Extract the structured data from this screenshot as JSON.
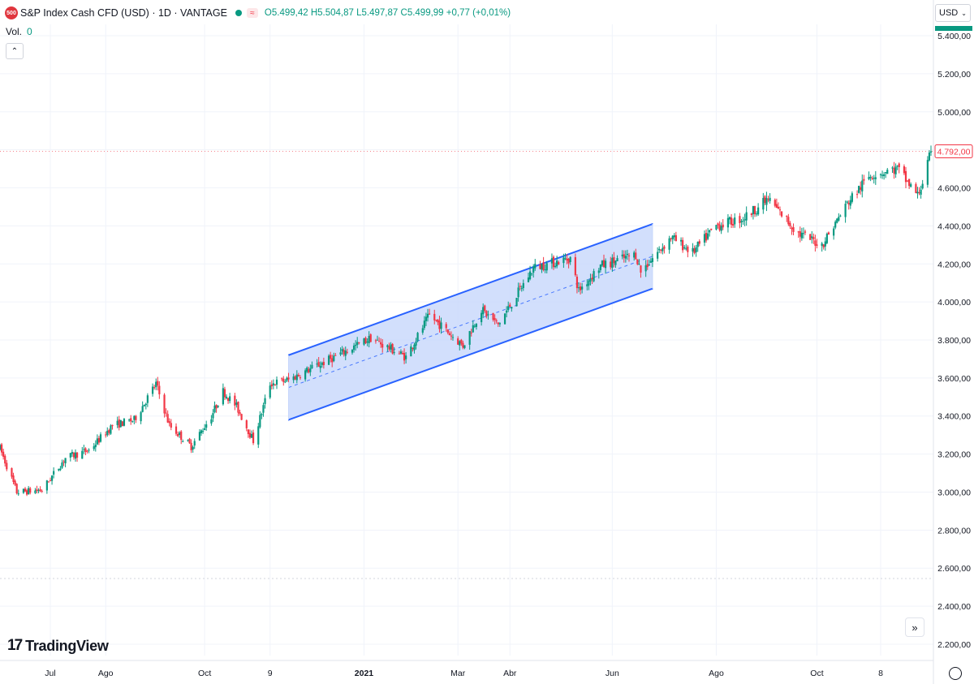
{
  "header": {
    "symbol_badge": "500",
    "symbol_title": "S&P Index Cash CFD (USD) · 1D · VANTAGE",
    "wave_icon": "≈",
    "ohlc": {
      "open_label": "O",
      "open": "5.499,42",
      "high_label": "H",
      "high": "5.504,87",
      "low_label": "L",
      "low": "5.497,87",
      "close_label": "C",
      "close": "5.499,99",
      "change": "+0,77 (+0,01%)"
    }
  },
  "volume": {
    "label": "Vol.",
    "value": "0"
  },
  "currency_selector": "USD",
  "branding": {
    "mark": "17",
    "name": "TradingView"
  },
  "scroll_button_icon": "»",
  "chart_data": {
    "type": "candlestick",
    "y_ticks": [
      "2.200,00",
      "2.400,00",
      "2.600,00",
      "2.800,00",
      "3.000,00",
      "3.200,00",
      "3.400,00",
      "3.600,00",
      "3.800,00",
      "4.000,00",
      "4.200,00",
      "4.400,00",
      "4.600,00",
      "4.800,00",
      "5.000,00",
      "5.200,00",
      "5.400,00"
    ],
    "y_tick_values": [
      2200,
      2400,
      2600,
      2800,
      3000,
      3200,
      3400,
      3600,
      3800,
      4000,
      4200,
      4400,
      4600,
      4800,
      5000,
      5200,
      5400
    ],
    "ylim": [
      2140,
      5460
    ],
    "x_ticks": [
      {
        "label": "Jul",
        "date": "2020-07-01"
      },
      {
        "label": "Ago",
        "date": "2020-08-03"
      },
      {
        "label": "Oct",
        "date": "2020-10-01"
      },
      {
        "label": "9",
        "date": "2020-11-09"
      },
      {
        "label": "2021",
        "date": "2021-01-04"
      },
      {
        "label": "Mar",
        "date": "2021-03-01"
      },
      {
        "label": "Abr",
        "date": "2021-04-01"
      },
      {
        "label": "Jun",
        "date": "2021-06-01"
      },
      {
        "label": "Ago",
        "date": "2021-08-02"
      },
      {
        "label": "Oct",
        "date": "2021-10-01"
      },
      {
        "label": "8",
        "date": "2021-11-08"
      }
    ],
    "xlim": [
      "2020-06-01",
      "2021-12-08"
    ],
    "price_path": [
      [
        "2020-06-01",
        3230
      ],
      [
        "2020-06-11",
        3000
      ],
      [
        "2020-06-26",
        3010
      ],
      [
        "2020-07-10",
        3180
      ],
      [
        "2020-07-24",
        3220
      ],
      [
        "2020-08-07",
        3350
      ],
      [
        "2020-08-20",
        3380
      ],
      [
        "2020-09-02",
        3570
      ],
      [
        "2020-09-10",
        3350
      ],
      [
        "2020-09-23",
        3240
      ],
      [
        "2020-10-05",
        3400
      ],
      [
        "2020-10-12",
        3530
      ],
      [
        "2020-10-20",
        3450
      ],
      [
        "2020-10-30",
        3270
      ],
      [
        "2020-11-09",
        3570
      ],
      [
        "2020-11-20",
        3590
      ],
      [
        "2020-12-15",
        3700
      ],
      [
        "2021-01-08",
        3810
      ],
      [
        "2021-01-29",
        3710
      ],
      [
        "2021-02-12",
        3930
      ],
      [
        "2021-03-04",
        3770
      ],
      [
        "2021-03-15",
        3960
      ],
      [
        "2021-03-25",
        3880
      ],
      [
        "2021-04-15",
        4180
      ],
      [
        "2021-05-07",
        4230
      ],
      [
        "2021-05-12",
        4060
      ],
      [
        "2021-05-25",
        4190
      ],
      [
        "2021-06-15",
        4250
      ],
      [
        "2021-06-18",
        4160
      ],
      [
        "2021-07-06",
        4340
      ],
      [
        "2021-07-19",
        4260
      ],
      [
        "2021-08-02",
        4400
      ],
      [
        "2021-08-18",
        4440
      ],
      [
        "2021-09-02",
        4540
      ],
      [
        "2021-09-20",
        4360
      ],
      [
        "2021-10-04",
        4300
      ],
      [
        "2021-10-20",
        4530
      ],
      [
        "2021-11-02",
        4670
      ],
      [
        "2021-11-18",
        4700
      ],
      [
        "2021-11-30",
        4560
      ],
      [
        "2021-12-03",
        4630
      ],
      [
        "2021-12-08",
        4790
      ]
    ],
    "last_price_label": "4.792,00",
    "last_price": 4792,
    "channel": {
      "start": {
        "date": "2020-11-20",
        "upper": 3720,
        "lower": 3380
      },
      "end": {
        "date": "2021-06-25",
        "upper": 4410,
        "lower": 4070
      }
    }
  },
  "colors": {
    "up": "#089981",
    "down": "#f23645",
    "grid": "#f0f3fa",
    "channel_line": "#2962ff",
    "channel_fill": "#c7d7fb",
    "last_price_box": "#f23645"
  }
}
